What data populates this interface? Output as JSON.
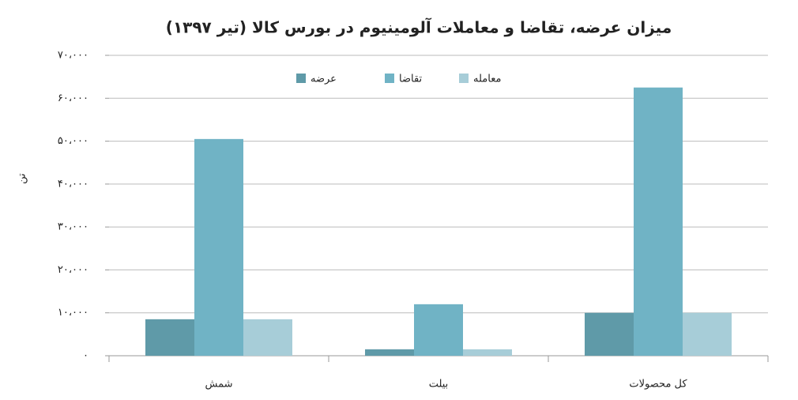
{
  "chart_data": {
    "type": "bar",
    "title": "میزان عرضه، تقاضا و معاملات آلومینیوم در بورس کالا (تیر ۱۳۹۷)",
    "y_label": "تن",
    "categories": [
      "شمش",
      "بیلت",
      "کل محصولات"
    ],
    "series": [
      {
        "name": "عرضه",
        "color": "#5f9aa8",
        "values": [
          8500,
          1500,
          10000
        ]
      },
      {
        "name": "تقاضا",
        "color": "#70b3c5",
        "values": [
          50500,
          12000,
          62500
        ]
      },
      {
        "name": "معامله",
        "color": "#a7cdd8",
        "values": [
          8500,
          1500,
          10000
        ]
      }
    ],
    "ylim": [
      0,
      70000
    ],
    "yticks": [
      {
        "value": 0,
        "label": "۰"
      },
      {
        "value": 10000,
        "label": "۱۰،۰۰۰"
      },
      {
        "value": 20000,
        "label": "۲۰،۰۰۰"
      },
      {
        "value": 30000,
        "label": "۳۰،۰۰۰"
      },
      {
        "value": 40000,
        "label": "۴۰،۰۰۰"
      },
      {
        "value": 50000,
        "label": "۵۰،۰۰۰"
      },
      {
        "value": 60000,
        "label": "۶۰،۰۰۰"
      },
      {
        "value": 70000,
        "label": "۷۰،۰۰۰"
      }
    ],
    "grid": true,
    "legend": "top"
  }
}
